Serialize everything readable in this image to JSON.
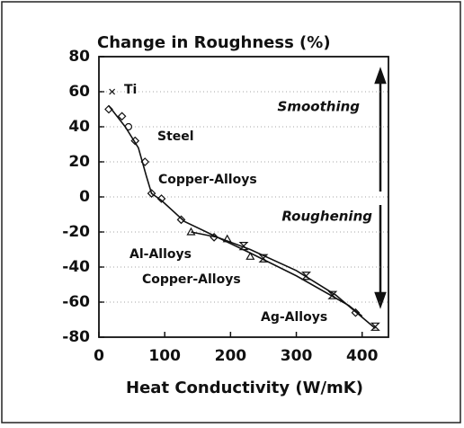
{
  "chart_data": {
    "type": "scatter",
    "title": "Change in Roughness (%)",
    "x_label": "Heat Conductivity (W/mK)",
    "xlim": [
      0,
      440
    ],
    "xticks": [
      0,
      100,
      200,
      300,
      400
    ],
    "ylim": [
      -80,
      80
    ],
    "yticks": [
      -80,
      -60,
      -40,
      -20,
      0,
      20,
      40,
      60,
      80
    ],
    "grid": true,
    "color": "#111111",
    "annotations": [
      "Ti",
      "Smoothing",
      "Steel",
      "Copper-Alloys",
      "Roughening",
      "Al-Alloys",
      "Copper-Alloys",
      "Ag-Alloys"
    ],
    "series": [
      {
        "marker": "x",
        "x": [
          20
        ],
        "values": [
          60
        ]
      },
      {
        "marker": "diamond",
        "x": [
          15,
          35,
          55,
          70,
          80,
          95,
          125,
          175,
          390
        ],
        "values": [
          50,
          46,
          32,
          20,
          2,
          -1,
          -13,
          -23,
          -66
        ]
      },
      {
        "marker": "circle",
        "x": [
          45
        ],
        "values": [
          40
        ]
      },
      {
        "marker": "triangle",
        "x": [
          140,
          195,
          230
        ],
        "values": [
          -20,
          -24,
          -34
        ]
      },
      {
        "marker": "hourglass",
        "x": [
          220,
          250,
          315,
          355,
          420
        ],
        "values": [
          -28,
          -35,
          -45,
          -56,
          -74
        ]
      },
      {
        "marker": "line",
        "x": [
          15,
          40,
          60,
          72,
          80,
          95,
          130,
          180,
          230,
          300,
          380,
          400
        ],
        "values": [
          52,
          40,
          28,
          12,
          2,
          -2,
          -14,
          -23,
          -32,
          -45,
          -62,
          -68
        ]
      },
      {
        "marker": "line",
        "x": [
          140,
          180,
          230,
          300,
          360,
          420
        ],
        "values": [
          -20,
          -23,
          -30,
          -42,
          -56,
          -75
        ]
      }
    ]
  }
}
